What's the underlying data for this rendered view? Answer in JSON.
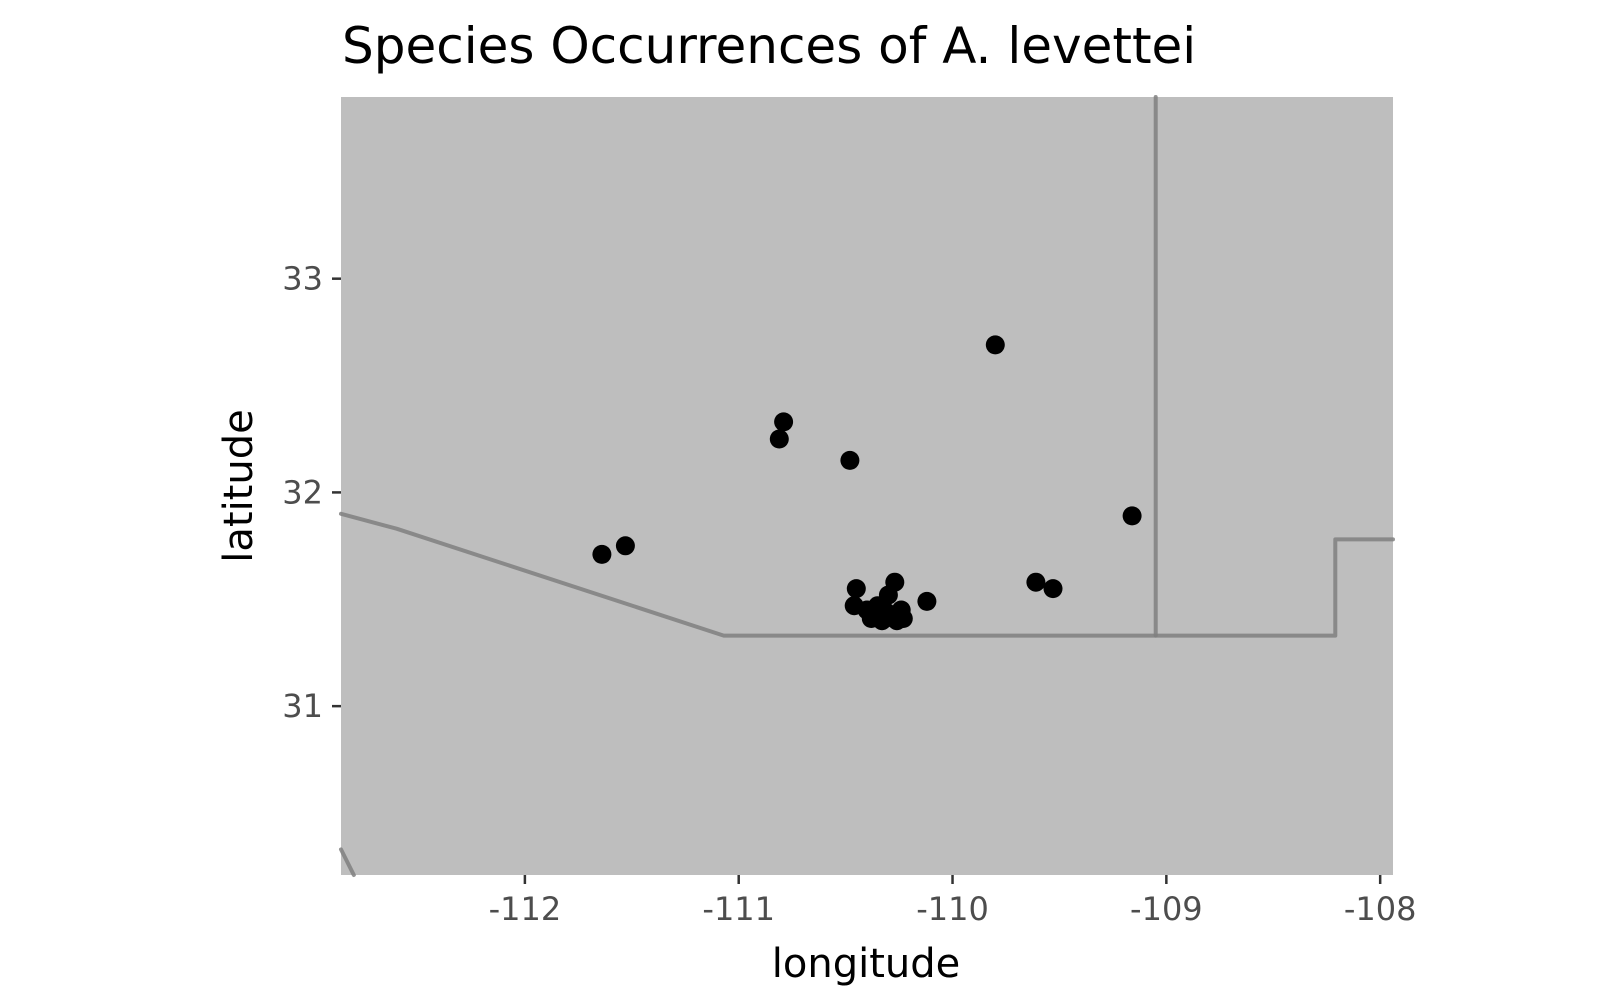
{
  "title": "Species Occurrences of A. levettei",
  "xlabel": "longitude",
  "ylabel": "latitude",
  "colors": {
    "background": "#ffffff",
    "land": "#bebebe",
    "border": "#808080",
    "point": "#000000",
    "tick": "#333333",
    "tick_label": "#4d4d4d"
  },
  "chart_data": {
    "type": "scatter",
    "title": "Species Occurrences of A. levettei",
    "xlabel": "longitude",
    "ylabel": "latitude",
    "xlim": [
      -112.86,
      -107.94
    ],
    "ylim": [
      30.21,
      33.85
    ],
    "x_ticks": [
      -112,
      -111,
      -110,
      -109,
      -108
    ],
    "y_ticks": [
      31,
      32,
      33
    ],
    "x_tick_labels": [
      "-112",
      "-111",
      "-110",
      "-109",
      "-108"
    ],
    "y_tick_labels": [
      "31",
      "32",
      "33"
    ],
    "grid": false,
    "points": [
      {
        "x": -109.8,
        "y": 32.69
      },
      {
        "x": -110.79,
        "y": 32.33
      },
      {
        "x": -110.81,
        "y": 32.25
      },
      {
        "x": -110.48,
        "y": 32.15
      },
      {
        "x": -111.53,
        "y": 31.75
      },
      {
        "x": -111.64,
        "y": 31.71
      },
      {
        "x": -109.16,
        "y": 31.89
      },
      {
        "x": -109.61,
        "y": 31.58
      },
      {
        "x": -109.53,
        "y": 31.55
      },
      {
        "x": -110.12,
        "y": 31.49
      },
      {
        "x": -110.45,
        "y": 31.55
      },
      {
        "x": -110.27,
        "y": 31.58
      },
      {
        "x": -110.46,
        "y": 31.47
      },
      {
        "x": -110.4,
        "y": 31.45
      },
      {
        "x": -110.35,
        "y": 31.47
      },
      {
        "x": -110.3,
        "y": 31.52
      },
      {
        "x": -110.24,
        "y": 31.45
      },
      {
        "x": -110.38,
        "y": 31.41
      },
      {
        "x": -110.33,
        "y": 31.4
      },
      {
        "x": -110.28,
        "y": 31.42
      },
      {
        "x": -110.23,
        "y": 31.41
      },
      {
        "x": -110.31,
        "y": 31.44
      },
      {
        "x": -110.36,
        "y": 31.43
      },
      {
        "x": -110.26,
        "y": 31.4
      }
    ],
    "borders": [
      [
        [
          -112.86,
          31.9
        ],
        [
          -112.6,
          31.83
        ],
        [
          -111.07,
          31.33
        ],
        [
          -110.0,
          31.33
        ],
        [
          -109.05,
          31.33
        ],
        [
          -108.21,
          31.33
        ],
        [
          -108.21,
          31.78
        ],
        [
          -107.94,
          31.78
        ]
      ],
      [
        [
          -109.05,
          33.85
        ],
        [
          -109.05,
          31.33
        ]
      ],
      [
        [
          -112.86,
          30.33
        ],
        [
          -112.8,
          30.21
        ]
      ]
    ]
  }
}
